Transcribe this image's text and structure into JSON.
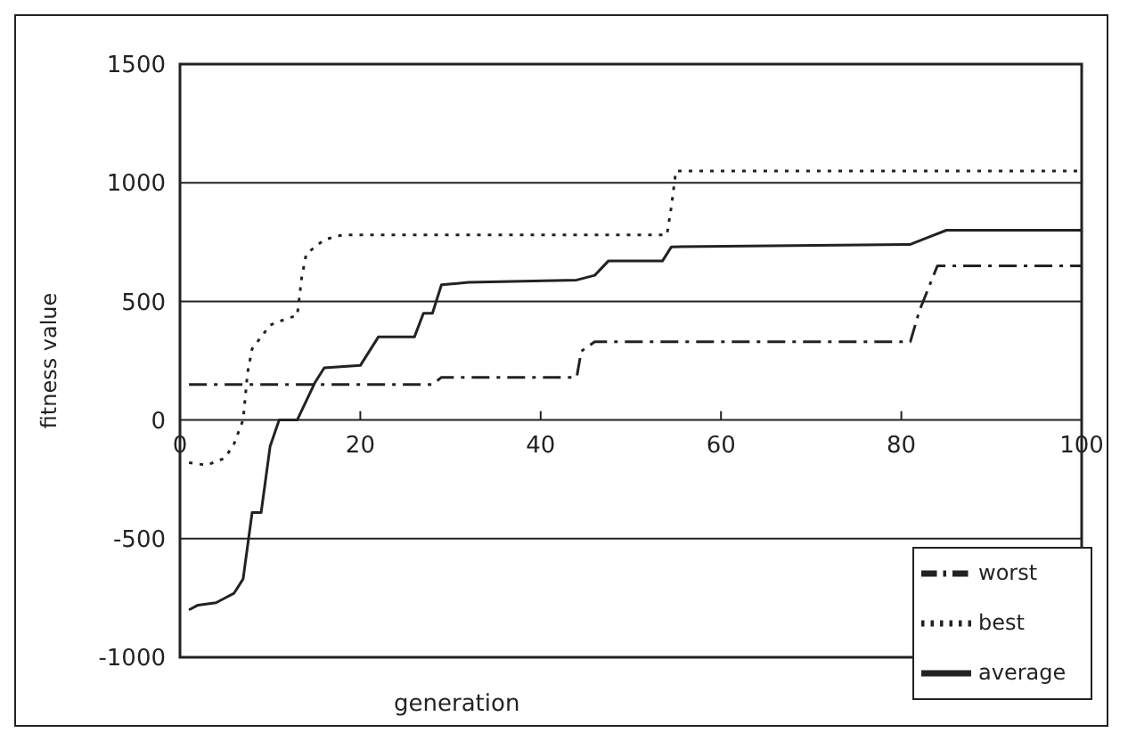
{
  "chart_data": {
    "type": "line",
    "xlabel": "generation",
    "ylabel": "fitness value",
    "xlim": [
      0,
      100
    ],
    "xticks": [
      0,
      20,
      40,
      60,
      80,
      100
    ],
    "ylim": [
      -1000,
      1500
    ],
    "yticks": [
      -1000,
      -500,
      0,
      500,
      1000,
      1500
    ],
    "grid": "y",
    "legend": "bottom right",
    "marker": "none",
    "series": [
      {
        "name": "worst",
        "color": "#222222",
        "line_style": "dashdot",
        "x": [
          1,
          28,
          29,
          44,
          44.5,
          46,
          81,
          82,
          84,
          100
        ],
        "values": [
          150,
          150,
          180,
          180,
          290,
          330,
          330,
          460,
          650,
          650
        ]
      },
      {
        "name": "best",
        "color": "#222222",
        "line_style": "dotted",
        "x": [
          1,
          3,
          5,
          6,
          7,
          7.5,
          8,
          9,
          10,
          12,
          13,
          13.5,
          14,
          16,
          18,
          54,
          54.5,
          55,
          100
        ],
        "values": [
          -180,
          -190,
          -160,
          -100,
          0,
          200,
          300,
          350,
          400,
          430,
          440,
          600,
          700,
          760,
          780,
          780,
          900,
          1050,
          1050
        ]
      },
      {
        "name": "average",
        "color": "#222222",
        "line_style": "solid",
        "x": [
          1,
          2,
          4,
          6,
          7,
          8,
          9,
          10,
          11,
          13,
          15,
          16,
          20,
          22,
          26,
          27,
          28,
          29,
          32,
          44,
          46,
          47.5,
          53.5,
          54.5,
          81,
          83,
          85,
          100
        ],
        "values": [
          -800,
          -780,
          -770,
          -730,
          -670,
          -390,
          -390,
          -110,
          0,
          0,
          160,
          220,
          230,
          350,
          350,
          450,
          450,
          570,
          580,
          590,
          610,
          670,
          670,
          730,
          740,
          770,
          800,
          800
        ]
      }
    ]
  }
}
